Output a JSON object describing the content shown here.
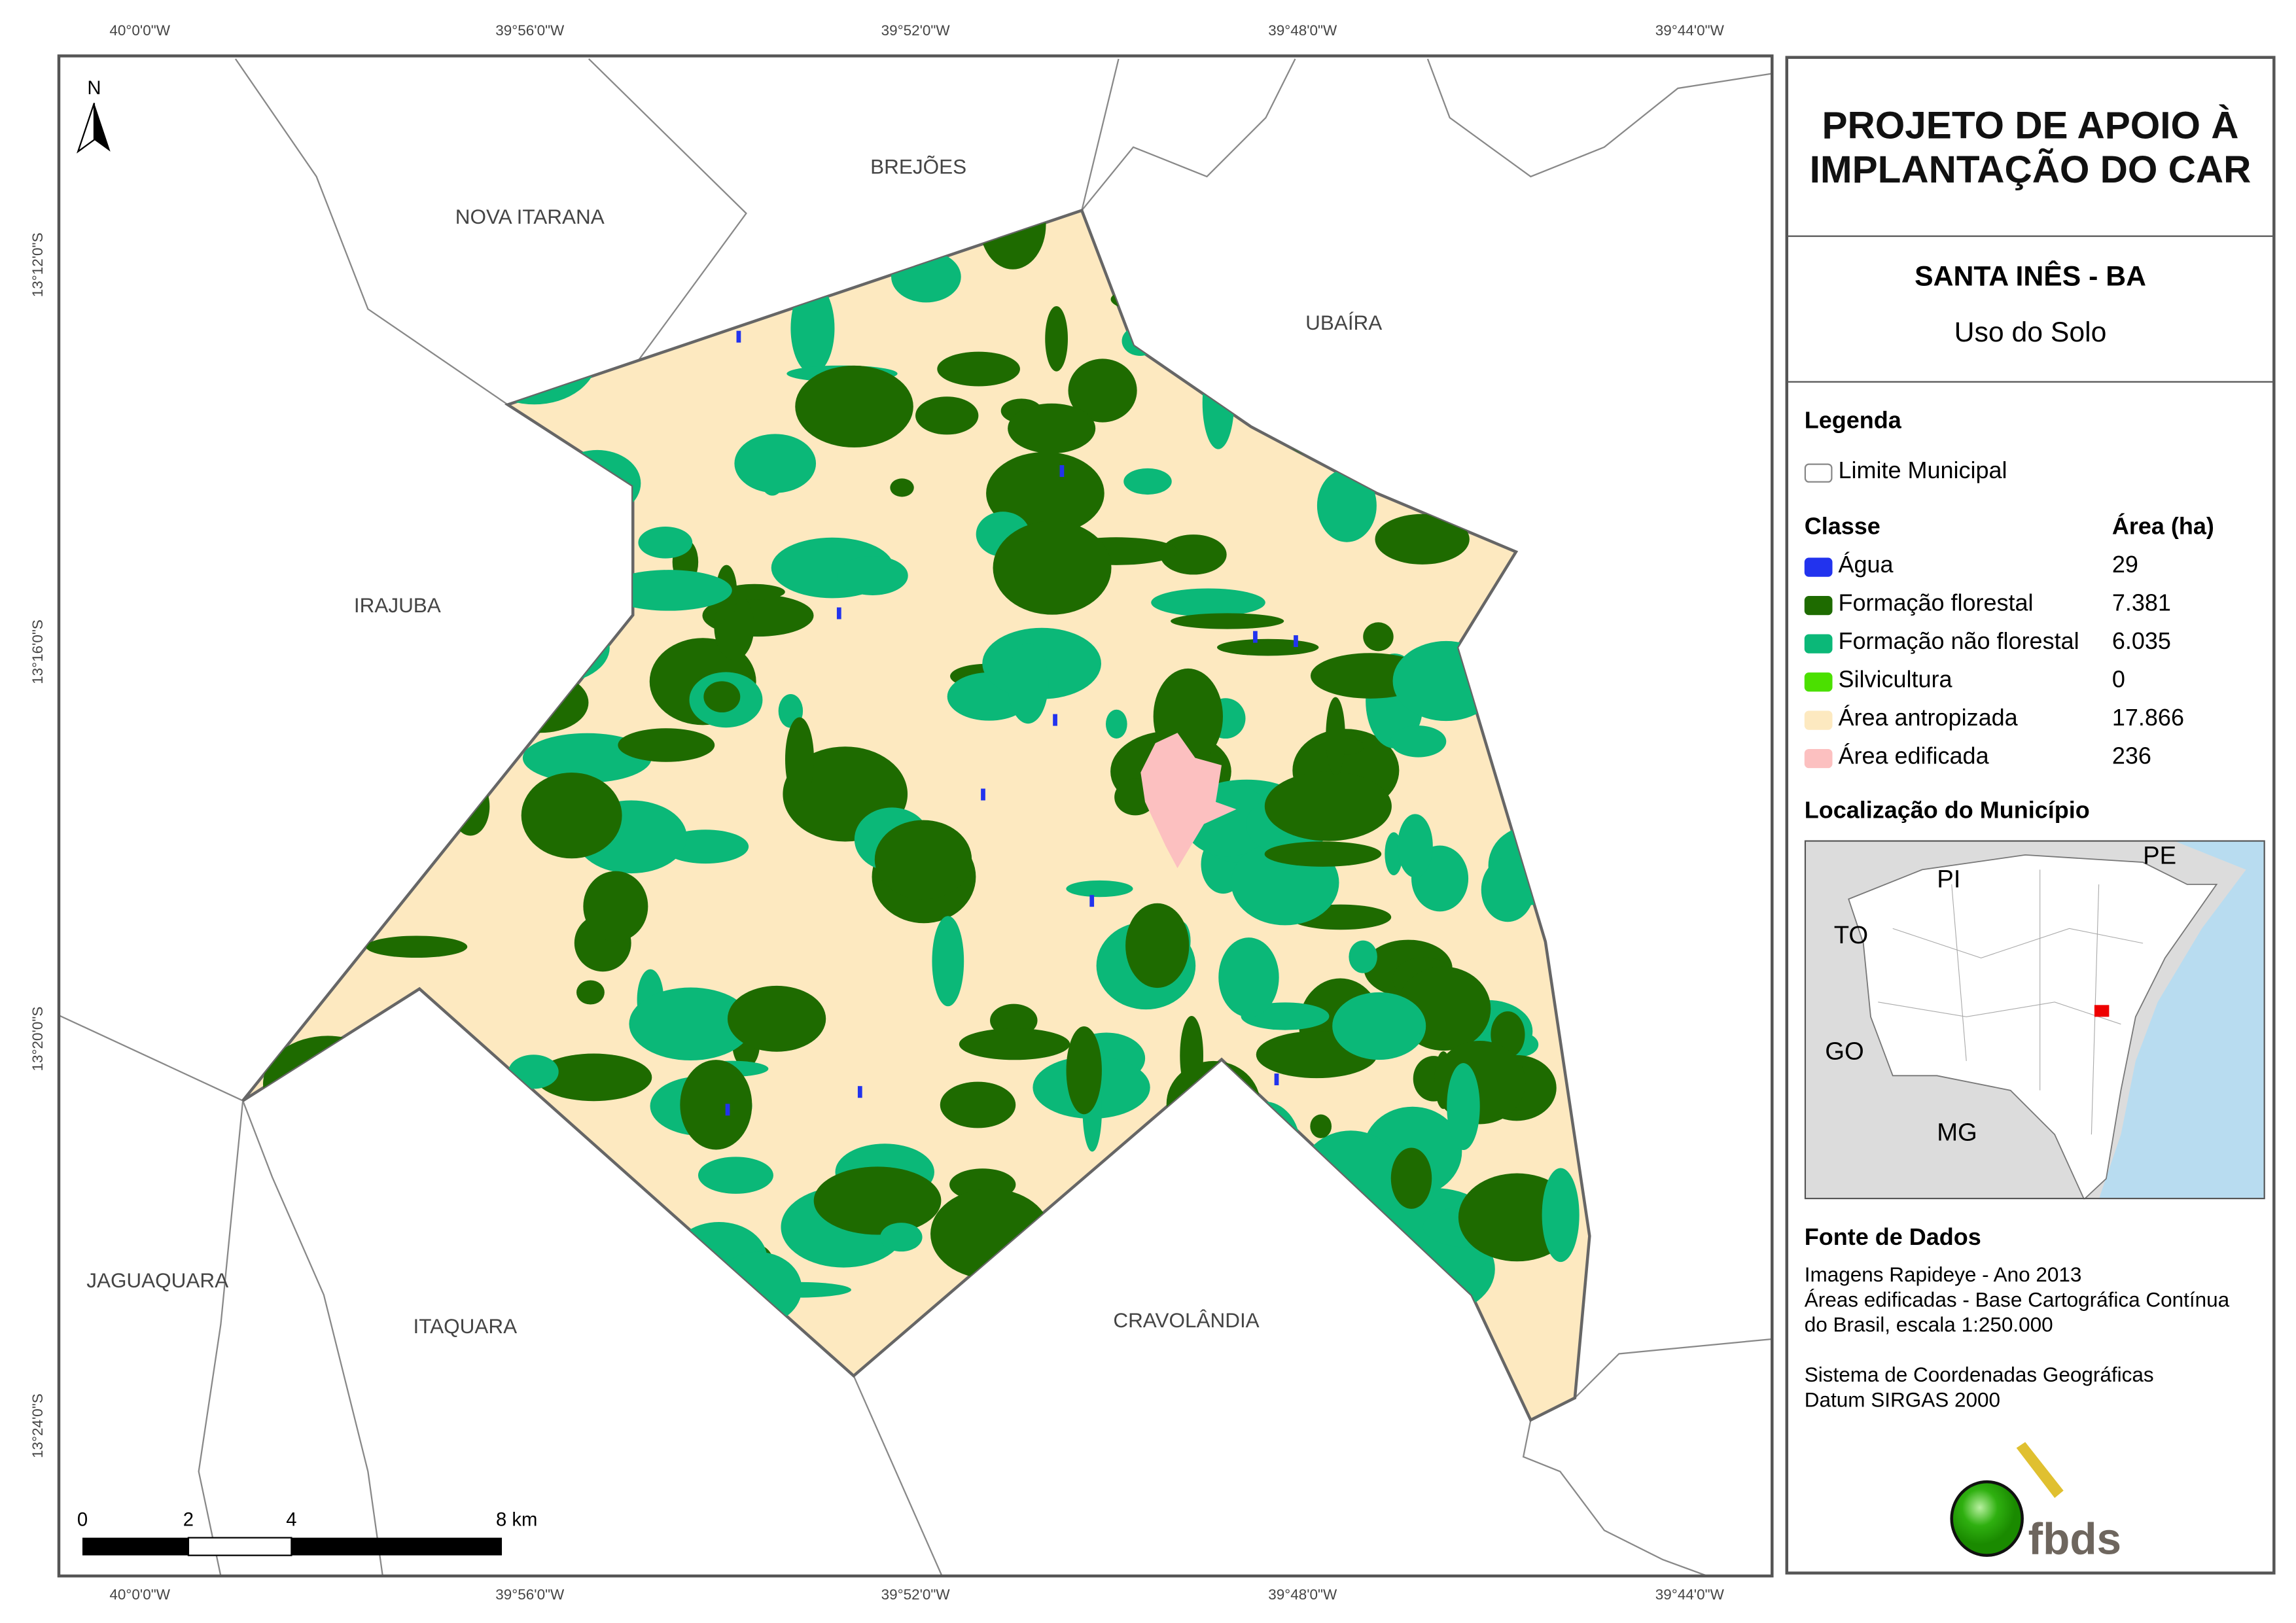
{
  "header": {
    "title_line1": "PROJETO DE APOIO À",
    "title_line2": "IMPLANTAÇÃO DO CAR",
    "municipality": "SANTA INÊS - BA",
    "theme": "Uso do Solo"
  },
  "legend": {
    "title": "Legenda",
    "boundary_label": "Limite Municipal",
    "class_header": "Classe",
    "area_header": "Área (ha)",
    "classes": [
      {
        "label": "Água",
        "area": "29",
        "color": "#2233ee"
      },
      {
        "label": "Formação florestal",
        "area": "7.381",
        "color": "#1e6b00"
      },
      {
        "label": "Formação não florestal",
        "area": "6.035",
        "color": "#0bb878"
      },
      {
        "label": "Silvicultura",
        "area": "0",
        "color": "#4be000"
      },
      {
        "label": "Área antropizada",
        "area": "17.866",
        "color": "#fde9c0"
      },
      {
        "label": "Área edificada",
        "area": "236",
        "color": "#fcc0c0"
      }
    ]
  },
  "location": {
    "title": "Localização do Município",
    "labels": [
      "PI",
      "PE",
      "TO",
      "GO",
      "MG"
    ]
  },
  "sources": {
    "title": "Fonte de Dados",
    "lines": [
      "Imagens Rapideye - Ano 2013",
      "Áreas edificadas - Base Cartográfica Contínua",
      "do Brasil, escala 1:250.000",
      "",
      "Sistema de Coordenadas Geográficas",
      "Datum SIRGAS 2000"
    ]
  },
  "logo": {
    "text": "fbds"
  },
  "map": {
    "north": "N",
    "lon_ticks": [
      "40°0'0\"W",
      "39°56'0\"W",
      "39°52'0\"W",
      "39°48'0\"W",
      "39°44'0\"W"
    ],
    "lat_ticks": [
      "13°12'0\"S",
      "13°16'0\"S",
      "13°20'0\"S",
      "13°24'0\"S"
    ],
    "neighbors": [
      "NOVA ITARANA",
      "BREJÕES",
      "UBAÍRA",
      "IRAJUBA",
      "JAGUAQUARA",
      "ITAQUARA",
      "CRAVOLÂNDIA"
    ],
    "scale_labels": [
      "0",
      "2",
      "4",
      "8 km"
    ]
  }
}
